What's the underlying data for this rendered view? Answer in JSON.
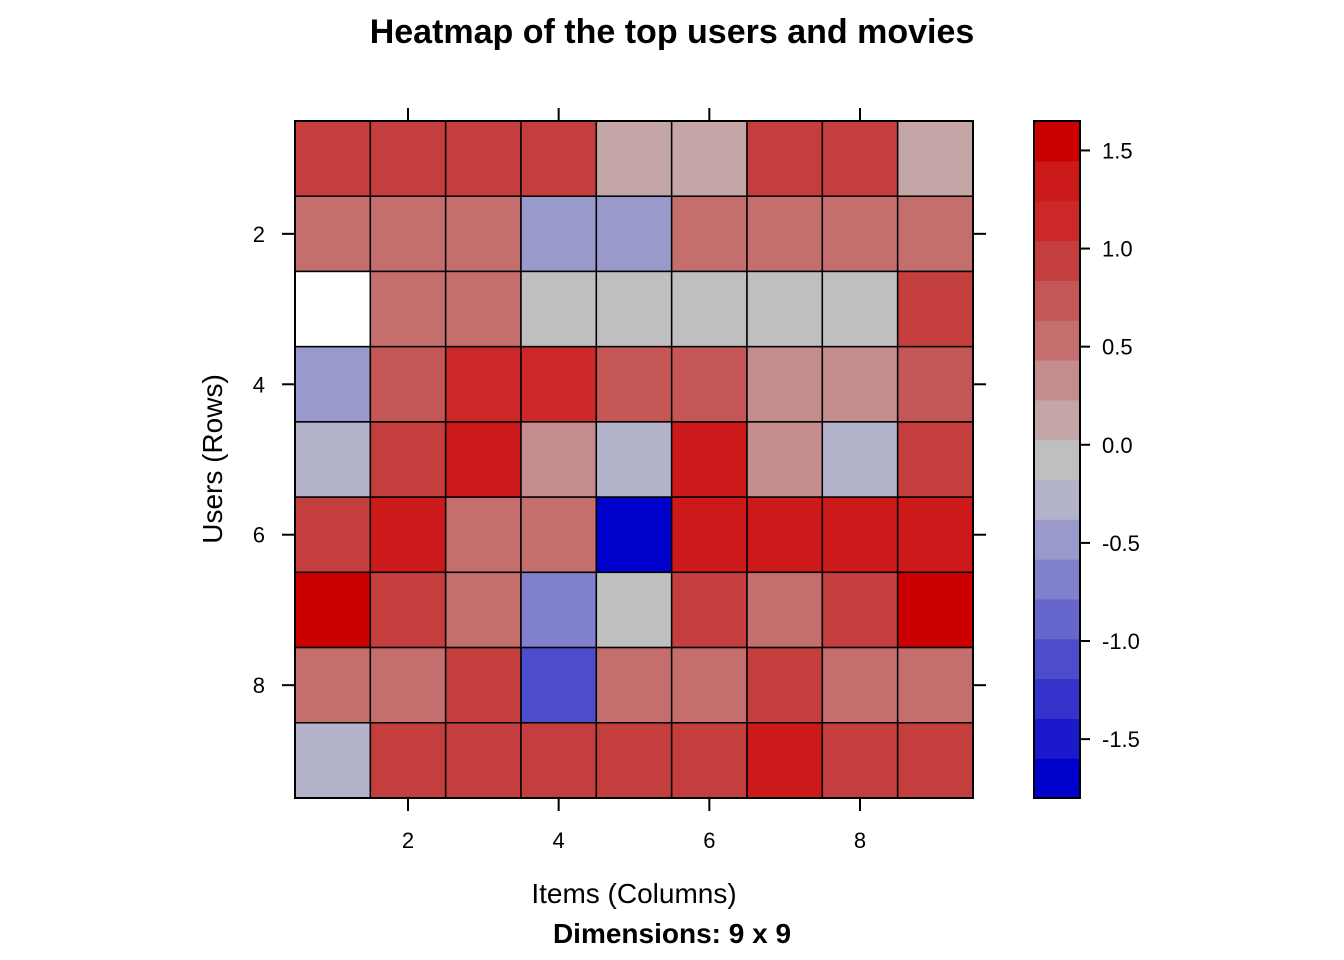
{
  "chart_data": {
    "type": "heatmap",
    "title": "Heatmap of the top users and movies",
    "xlabel": "Items (Columns)",
    "ylabel": "Users (Rows)",
    "subtitle": "Dimensions: 9 x 9",
    "x_ticks": [
      "2",
      "4",
      "6",
      "8"
    ],
    "y_ticks": [
      "2",
      "4",
      "6",
      "8"
    ],
    "rows": 9,
    "cols": 9,
    "values": [
      [
        1.0,
        1.0,
        1.0,
        1.0,
        0.2,
        0.2,
        1.0,
        1.0,
        0.2
      ],
      [
        0.5,
        0.5,
        0.6,
        -0.4,
        -0.4,
        0.6,
        0.6,
        0.6,
        0.6
      ],
      [
        null,
        0.5,
        0.6,
        0.0,
        0.0,
        0.0,
        0.0,
        0.0,
        0.9
      ],
      [
        -0.4,
        0.7,
        1.2,
        1.2,
        0.7,
        0.7,
        0.3,
        0.3,
        0.7
      ],
      [
        -0.2,
        1.0,
        1.4,
        0.3,
        -0.2,
        1.4,
        0.3,
        -0.2,
        1.0
      ],
      [
        1.0,
        1.4,
        0.5,
        0.5,
        -1.8,
        1.4,
        1.4,
        1.4,
        1.4
      ],
      [
        1.6,
        1.0,
        0.5,
        -0.7,
        0.0,
        1.0,
        0.5,
        1.0,
        1.6
      ],
      [
        0.5,
        0.5,
        1.0,
        -1.1,
        0.5,
        0.5,
        1.0,
        0.5,
        0.5
      ],
      [
        -0.2,
        1.0,
        1.0,
        1.0,
        1.0,
        1.0,
        1.4,
        1.0,
        1.0
      ]
    ],
    "colorbar": {
      "ticks": [
        "1.5",
        "1.0",
        "0.5",
        "0.0",
        "-0.5",
        "-1.0",
        "-1.5"
      ],
      "tick_values": [
        1.5,
        1.0,
        0.5,
        0.0,
        -0.5,
        -1.0,
        -1.5
      ],
      "range": [
        -1.8,
        1.65
      ],
      "colors": [
        "#0000CC",
        "#1A1ACC",
        "#3333CC",
        "#4D4DCC",
        "#6666CC",
        "#8080CC",
        "#9999CC",
        "#B3B3CC",
        "#BFBFBF",
        "#C4A6A6",
        "#C48C8C",
        "#C46E6E",
        "#C45656",
        "#C43E3E",
        "#CC2828",
        "#CC1A1A",
        "#CC0000"
      ]
    },
    "grid": true,
    "legend": "right"
  }
}
